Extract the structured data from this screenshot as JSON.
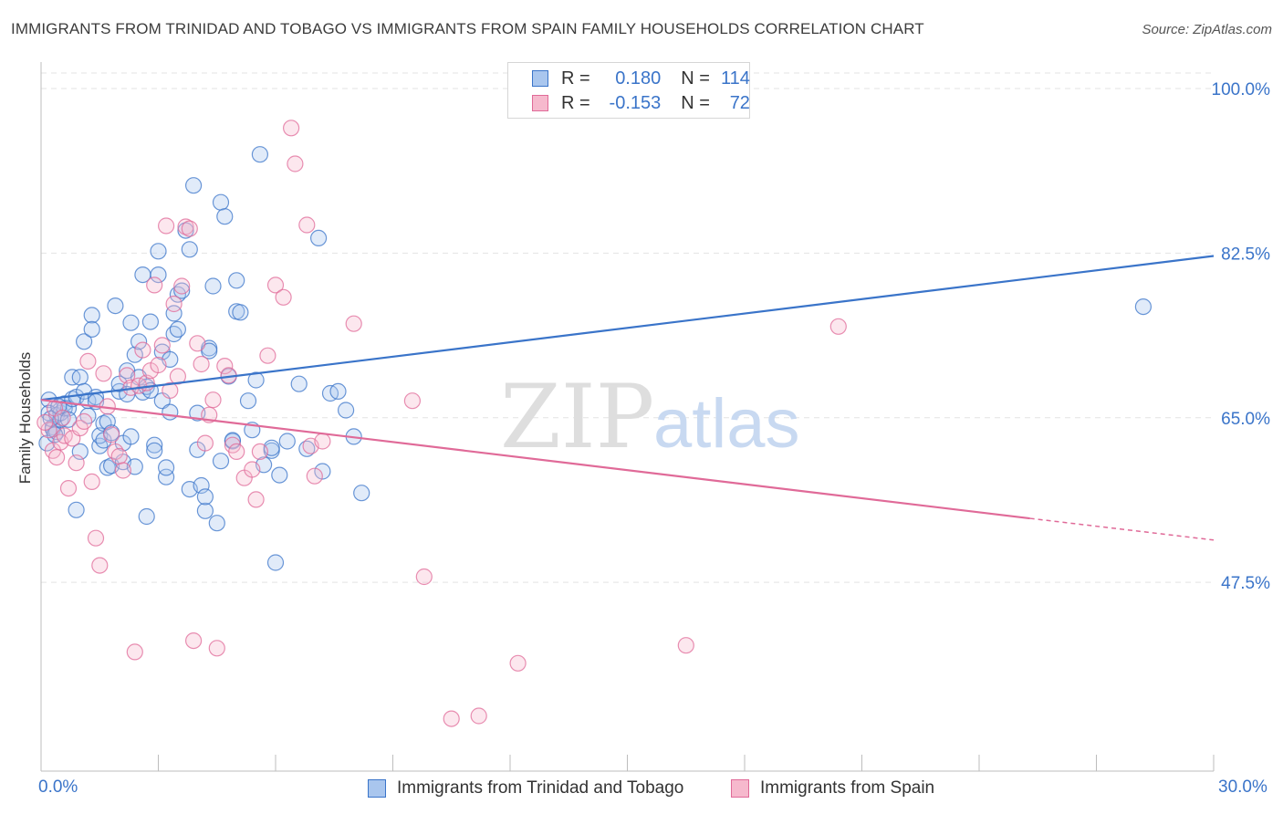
{
  "title": "IMMIGRANTS FROM TRINIDAD AND TOBAGO VS IMMIGRANTS FROM SPAIN FAMILY HOUSEHOLDS CORRELATION CHART",
  "source": "Source: ZipAtlas.com",
  "watermark": {
    "zip": "ZIP",
    "atlas": "atlas"
  },
  "legend": {
    "r_label": "R =",
    "n_label": "N =",
    "series": [
      {
        "name": "Immigrants from Trinidad and Tobago",
        "r": "0.180",
        "n": "114",
        "color": "#3a74c9",
        "fill": "#a9c6ee"
      },
      {
        "name": "Immigrants from Spain",
        "r": "-0.153",
        "n": "72",
        "color": "#e06a98",
        "fill": "#f6b9cd"
      }
    ]
  },
  "chart_data": {
    "type": "scatter",
    "title": "IMMIGRANTS FROM TRINIDAD AND TOBAGO VS IMMIGRANTS FROM SPAIN FAMILY HOUSEHOLDS CORRELATION CHART",
    "xlabel": "",
    "ylabel": "Family Households",
    "xlim": [
      0,
      30
    ],
    "ylim": [
      30,
      100
    ],
    "x_tick_labels": [
      "0.0%",
      "30.0%"
    ],
    "y_ticks": [
      47.5,
      65.0,
      82.5,
      100.0
    ],
    "y_tick_labels": [
      "47.5%",
      "65.0%",
      "82.5%",
      "100.0%"
    ],
    "grid": true,
    "series": [
      {
        "name": "Immigrants from Trinidad and Tobago",
        "color": "#3a74c9",
        "trend": {
          "x": [
            0,
            30
          ],
          "y": [
            66.9,
            82.2
          ]
        },
        "points": [
          [
            0.2,
            66.9
          ],
          [
            0.2,
            65.5
          ],
          [
            0.3,
            64.0
          ],
          [
            0.3,
            63.8
          ],
          [
            0.4,
            63.5
          ],
          [
            0.4,
            65.3
          ],
          [
            0.5,
            64.8
          ],
          [
            0.5,
            65.5
          ],
          [
            0.6,
            66.5
          ],
          [
            0.6,
            66.0
          ],
          [
            0.7,
            66.0
          ],
          [
            0.7,
            64.8
          ],
          [
            0.8,
            67.0
          ],
          [
            0.8,
            69.3
          ],
          [
            0.9,
            55.2
          ],
          [
            0.9,
            67.2
          ],
          [
            1.0,
            61.4
          ],
          [
            1.0,
            69.3
          ],
          [
            1.1,
            73.1
          ],
          [
            1.1,
            67.8
          ],
          [
            1.2,
            65.2
          ],
          [
            1.2,
            66.8
          ],
          [
            1.3,
            75.9
          ],
          [
            1.3,
            74.4
          ],
          [
            1.4,
            67.2
          ],
          [
            1.4,
            66.7
          ],
          [
            1.5,
            62.0
          ],
          [
            1.5,
            63.1
          ],
          [
            1.6,
            62.6
          ],
          [
            1.6,
            64.4
          ],
          [
            1.7,
            64.6
          ],
          [
            1.7,
            59.7
          ],
          [
            1.8,
            63.4
          ],
          [
            1.8,
            59.9
          ],
          [
            1.9,
            76.9
          ],
          [
            2.0,
            67.8
          ],
          [
            2.0,
            68.6
          ],
          [
            2.1,
            60.3
          ],
          [
            2.1,
            62.3
          ],
          [
            2.2,
            67.5
          ],
          [
            2.2,
            70.0
          ],
          [
            2.3,
            63.0
          ],
          [
            2.3,
            75.1
          ],
          [
            2.4,
            71.7
          ],
          [
            2.4,
            59.8
          ],
          [
            2.5,
            73.1
          ],
          [
            2.5,
            69.3
          ],
          [
            2.6,
            80.2
          ],
          [
            2.6,
            67.7
          ],
          [
            2.7,
            54.5
          ],
          [
            2.7,
            68.3
          ],
          [
            2.8,
            75.2
          ],
          [
            2.8,
            67.9
          ],
          [
            2.9,
            62.1
          ],
          [
            2.9,
            61.5
          ],
          [
            3.0,
            80.2
          ],
          [
            3.0,
            82.7
          ],
          [
            3.1,
            72.0
          ],
          [
            3.1,
            66.8
          ],
          [
            3.2,
            58.7
          ],
          [
            3.2,
            59.7
          ],
          [
            3.3,
            71.2
          ],
          [
            3.3,
            65.6
          ],
          [
            3.4,
            73.9
          ],
          [
            3.4,
            76.1
          ],
          [
            3.5,
            74.4
          ],
          [
            3.5,
            78.1
          ],
          [
            3.6,
            78.5
          ],
          [
            3.7,
            84.9
          ],
          [
            3.8,
            57.4
          ],
          [
            3.8,
            82.9
          ],
          [
            3.9,
            89.7
          ],
          [
            4.0,
            65.5
          ],
          [
            4.0,
            61.6
          ],
          [
            4.1,
            57.8
          ],
          [
            4.2,
            55.1
          ],
          [
            4.2,
            56.6
          ],
          [
            4.3,
            72.4
          ],
          [
            4.3,
            72.1
          ],
          [
            4.4,
            79.0
          ],
          [
            4.5,
            53.8
          ],
          [
            4.6,
            60.4
          ],
          [
            4.6,
            87.9
          ],
          [
            4.7,
            86.4
          ],
          [
            4.8,
            69.4
          ],
          [
            4.9,
            62.5
          ],
          [
            4.9,
            62.6
          ],
          [
            5.0,
            76.3
          ],
          [
            5.0,
            79.6
          ],
          [
            5.1,
            76.2
          ],
          [
            5.3,
            66.8
          ],
          [
            5.4,
            63.7
          ],
          [
            5.5,
            69.0
          ],
          [
            5.6,
            93.0
          ],
          [
            5.7,
            60.0
          ],
          [
            5.9,
            61.5
          ],
          [
            5.9,
            61.8
          ],
          [
            6.0,
            49.6
          ],
          [
            6.1,
            58.9
          ],
          [
            6.3,
            62.5
          ],
          [
            6.6,
            68.6
          ],
          [
            6.8,
            61.7
          ],
          [
            7.1,
            84.1
          ],
          [
            7.2,
            59.3
          ],
          [
            7.4,
            67.6
          ],
          [
            7.6,
            67.8
          ],
          [
            7.8,
            65.8
          ],
          [
            8.0,
            63.0
          ],
          [
            8.2,
            57.0
          ],
          [
            28.2,
            76.8
          ],
          [
            0.15,
            62.3
          ],
          [
            0.25,
            64.9
          ],
          [
            0.35,
            63.2
          ],
          [
            0.45,
            66.2
          ]
        ]
      },
      {
        "name": "Immigrants from Spain",
        "color": "#e06a98",
        "trend": {
          "x": [
            0,
            25.3
          ],
          "y": [
            66.9,
            54.3
          ]
        },
        "trend_dashed": {
          "x": [
            25.3,
            30
          ],
          "y": [
            54.3,
            52.0
          ]
        },
        "points": [
          [
            0.2,
            63.7
          ],
          [
            0.3,
            61.5
          ],
          [
            0.4,
            60.8
          ],
          [
            0.5,
            62.4
          ],
          [
            0.6,
            63.1
          ],
          [
            0.7,
            57.5
          ],
          [
            0.8,
            62.8
          ],
          [
            0.9,
            60.2
          ],
          [
            1.0,
            63.9
          ],
          [
            1.1,
            64.6
          ],
          [
            1.2,
            71.0
          ],
          [
            1.3,
            58.2
          ],
          [
            1.4,
            52.2
          ],
          [
            1.5,
            49.3
          ],
          [
            1.6,
            69.7
          ],
          [
            1.7,
            66.2
          ],
          [
            1.8,
            63.2
          ],
          [
            1.9,
            61.4
          ],
          [
            2.0,
            60.9
          ],
          [
            2.1,
            59.4
          ],
          [
            2.2,
            69.5
          ],
          [
            2.3,
            68.2
          ],
          [
            2.4,
            40.1
          ],
          [
            2.5,
            68.4
          ],
          [
            2.6,
            72.2
          ],
          [
            2.7,
            68.7
          ],
          [
            2.8,
            70.0
          ],
          [
            2.9,
            79.1
          ],
          [
            3.0,
            70.6
          ],
          [
            3.1,
            72.7
          ],
          [
            3.2,
            85.4
          ],
          [
            3.3,
            67.9
          ],
          [
            3.4,
            77.1
          ],
          [
            3.5,
            69.4
          ],
          [
            3.6,
            79.0
          ],
          [
            3.7,
            85.3
          ],
          [
            3.8,
            85.1
          ],
          [
            3.9,
            41.3
          ],
          [
            4.0,
            72.9
          ],
          [
            4.1,
            70.7
          ],
          [
            4.2,
            62.3
          ],
          [
            4.3,
            65.3
          ],
          [
            4.4,
            66.9
          ],
          [
            4.5,
            40.5
          ],
          [
            4.7,
            70.5
          ],
          [
            4.8,
            69.5
          ],
          [
            4.9,
            62.1
          ],
          [
            5.0,
            61.4
          ],
          [
            5.2,
            58.6
          ],
          [
            5.4,
            59.5
          ],
          [
            5.5,
            56.3
          ],
          [
            5.6,
            61.4
          ],
          [
            5.8,
            71.6
          ],
          [
            6.0,
            79.1
          ],
          [
            6.2,
            77.8
          ],
          [
            6.4,
            95.8
          ],
          [
            6.5,
            92.0
          ],
          [
            6.8,
            85.5
          ],
          [
            6.9,
            62.0
          ],
          [
            7.0,
            58.8
          ],
          [
            7.2,
            62.5
          ],
          [
            8.0,
            75.0
          ],
          [
            9.5,
            66.8
          ],
          [
            9.8,
            48.1
          ],
          [
            10.5,
            33.0
          ],
          [
            11.2,
            33.3
          ],
          [
            12.2,
            38.9
          ],
          [
            16.5,
            40.8
          ],
          [
            20.4,
            74.7
          ],
          [
            0.1,
            64.5
          ],
          [
            0.35,
            66.0
          ],
          [
            0.55,
            65.0
          ]
        ]
      }
    ]
  }
}
